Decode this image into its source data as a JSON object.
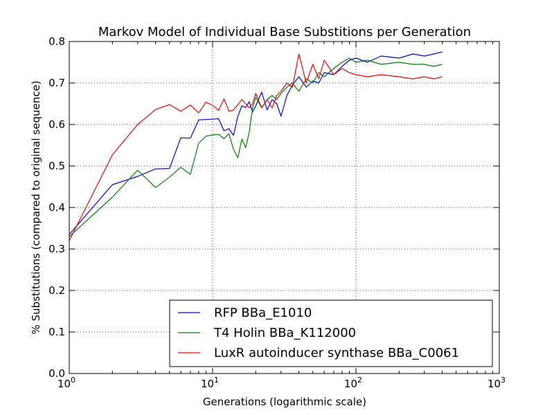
{
  "chart_data": {
    "type": "line",
    "title": "Markov Model of Individual Base Substitions per Generation",
    "xlabel": "Generations (logarithmic scale)",
    "ylabel": "% Substitutions (compared to original sequence)",
    "xscale": "log",
    "xlim": [
      1,
      1000
    ],
    "ylim": [
      0.0,
      0.8
    ],
    "x_ticks": [
      {
        "value": 1,
        "base": "10",
        "exp": "0"
      },
      {
        "value": 10,
        "base": "10",
        "exp": "1"
      },
      {
        "value": 100,
        "base": "10",
        "exp": "2"
      },
      {
        "value": 1000,
        "base": "10",
        "exp": "3"
      }
    ],
    "y_ticks": [
      "0.0",
      "0.1",
      "0.2",
      "0.3",
      "0.4",
      "0.5",
      "0.6",
      "0.7",
      "0.8"
    ],
    "grid": true,
    "legend_position": "lower-right",
    "series": [
      {
        "name": "RFP BBa_E1010",
        "color": "#0000ff",
        "x": [
          1,
          2,
          3,
          4,
          5,
          6,
          7,
          8,
          9,
          10,
          11,
          12,
          13,
          14,
          15,
          16,
          17,
          18,
          19,
          20,
          22,
          24,
          26,
          28,
          30,
          33,
          36,
          40,
          45,
          50,
          55,
          60,
          70,
          80,
          90,
          100,
          120,
          150,
          200,
          250,
          300,
          350,
          400
        ],
        "y": [
          0.335,
          0.455,
          0.475,
          0.493,
          0.494,
          0.568,
          0.567,
          0.611,
          0.612,
          0.613,
          0.614,
          0.585,
          0.59,
          0.574,
          0.62,
          0.645,
          0.641,
          0.655,
          0.63,
          0.645,
          0.678,
          0.635,
          0.66,
          0.65,
          0.62,
          0.67,
          0.695,
          0.715,
          0.69,
          0.705,
          0.7,
          0.725,
          0.72,
          0.74,
          0.755,
          0.76,
          0.75,
          0.765,
          0.76,
          0.77,
          0.765,
          0.77,
          0.775
        ]
      },
      {
        "name": "T4 Holin BBa_K112000",
        "color": "#008000",
        "x": [
          1,
          2,
          3,
          4,
          5,
          6,
          7,
          8,
          9,
          10,
          11,
          12,
          13,
          14,
          15,
          16,
          17,
          18,
          19,
          20,
          22,
          24,
          26,
          28,
          30,
          33,
          36,
          40,
          45,
          50,
          55,
          60,
          70,
          80,
          90,
          100,
          120,
          150,
          200,
          250,
          300,
          350,
          400
        ],
        "y": [
          0.33,
          0.425,
          0.49,
          0.448,
          0.473,
          0.497,
          0.48,
          0.555,
          0.572,
          0.575,
          0.576,
          0.566,
          0.578,
          0.54,
          0.52,
          0.565,
          0.544,
          0.58,
          0.64,
          0.665,
          0.64,
          0.66,
          0.67,
          0.66,
          0.675,
          0.69,
          0.7,
          0.68,
          0.71,
          0.7,
          0.725,
          0.715,
          0.735,
          0.75,
          0.76,
          0.75,
          0.755,
          0.745,
          0.75,
          0.745,
          0.745,
          0.74,
          0.745
        ]
      },
      {
        "name": "LuxR autoinducer synthase BBa_C0061",
        "color": "#ff0000",
        "x": [
          1,
          2,
          3,
          4,
          5,
          6,
          7,
          8,
          9,
          10,
          11,
          12,
          13,
          14,
          15,
          16,
          17,
          18,
          19,
          20,
          22,
          24,
          26,
          28,
          30,
          33,
          36,
          40,
          45,
          50,
          55,
          60,
          70,
          80,
          90,
          100,
          120,
          150,
          200,
          250,
          300,
          350,
          400
        ],
        "y": [
          0.32,
          0.527,
          0.6,
          0.636,
          0.648,
          0.632,
          0.647,
          0.628,
          0.654,
          0.646,
          0.634,
          0.662,
          0.632,
          0.635,
          0.648,
          0.66,
          0.65,
          0.64,
          0.65,
          0.675,
          0.64,
          0.66,
          0.64,
          0.67,
          0.68,
          0.7,
          0.69,
          0.77,
          0.7,
          0.745,
          0.71,
          0.755,
          0.72,
          0.735,
          0.725,
          0.72,
          0.715,
          0.72,
          0.715,
          0.71,
          0.715,
          0.71,
          0.715
        ]
      }
    ]
  }
}
